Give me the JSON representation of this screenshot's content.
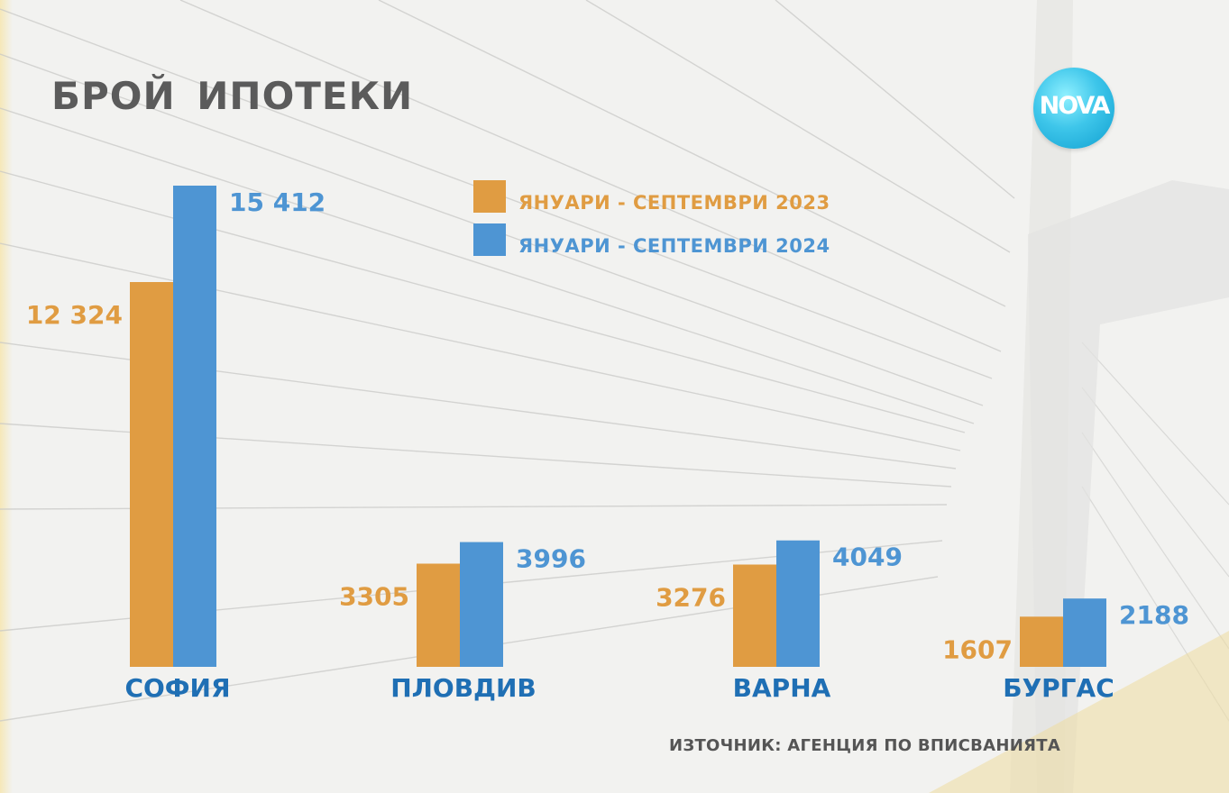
{
  "title": "БРОЙ  ИПОТЕКИ",
  "logo_text": "NOVA",
  "source": "ИЗТОЧНИК: АГЕНЦИЯ ПО ВПИСВАНИЯТА",
  "colors": {
    "series_2023": "#e09c42",
    "series_2024": "#4e95d3",
    "category": "#1f6fb4"
  },
  "chart_data": {
    "type": "bar",
    "title": "БРОЙ  ИПОТЕКИ",
    "categories": [
      "СОФИЯ",
      "ПЛОВДИВ",
      "ВАРНА",
      "БУРГАС"
    ],
    "series": [
      {
        "name": "ЯНУАРИ - СЕПТЕМВРИ 2023",
        "color": "#e09c42",
        "values": [
          12324,
          3305,
          3276,
          1607
        ],
        "labels": [
          "12 324",
          "3305",
          "3276",
          "1607"
        ]
      },
      {
        "name": "ЯНУАРИ - СЕПТЕМВРИ 2024",
        "color": "#4e95d3",
        "values": [
          15412,
          3996,
          4049,
          2188
        ],
        "labels": [
          "15 412",
          "3996",
          "4049",
          "2188"
        ]
      }
    ],
    "ylim": [
      0,
      15412
    ],
    "grid": false,
    "legend": "top-center"
  }
}
